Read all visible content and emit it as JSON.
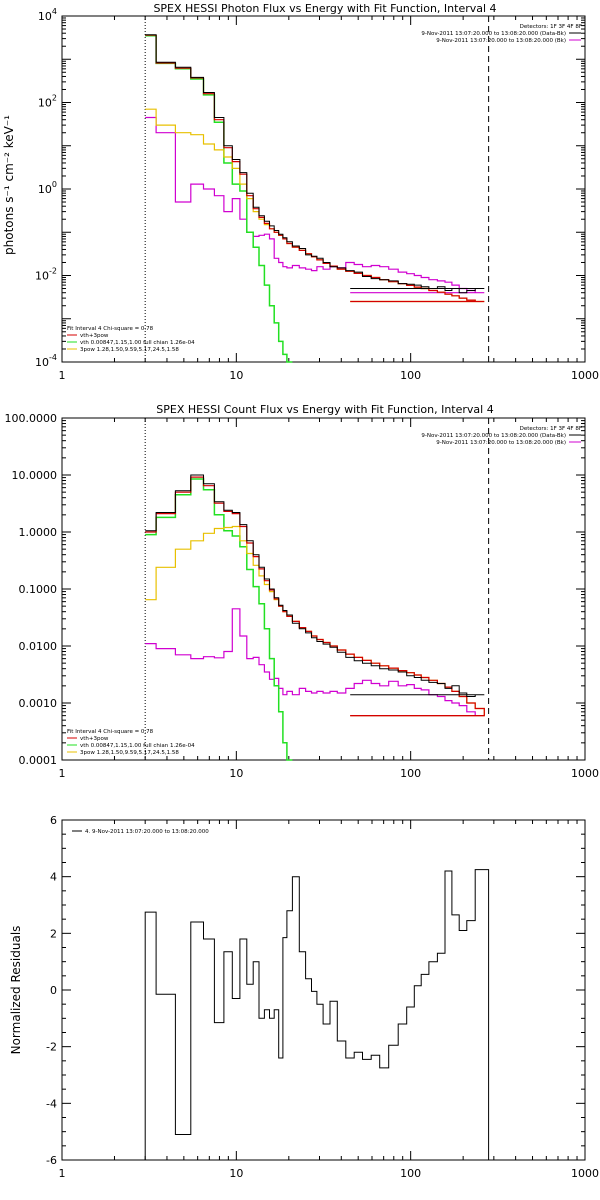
{
  "colors": {
    "data": "#000000",
    "total": "#d40000",
    "vth": "#22e022",
    "pow": "#e8c000",
    "bk": "#d000d0"
  },
  "chart_data": [
    {
      "type": "line",
      "title": "SPEX HESSI Photon Flux vs Energy with Fit Function, Interval 4",
      "ylabel": "photons s⁻¹ cm⁻² keV⁻¹",
      "xscale": "log",
      "yscale": "log",
      "xlim": [
        1,
        1000
      ],
      "ylim": [
        0.0001,
        10000
      ],
      "xticks": [
        1,
        10,
        100,
        1000
      ],
      "xtick_labels": [
        "1",
        "10",
        "100",
        "1000"
      ],
      "yticks": [
        0.0001,
        0.01,
        1,
        100,
        10000
      ],
      "ytick_labels": [
        {
          "b": "10",
          "e": "-4"
        },
        {
          "b": "10",
          "e": "-2"
        },
        {
          "b": "10",
          "e": "0"
        },
        {
          "b": "10",
          "e": "2"
        },
        {
          "b": "10",
          "e": "4"
        }
      ],
      "vlines": [
        {
          "x": 3,
          "style": "dotted"
        },
        {
          "x": 280,
          "style": "dashed"
        }
      ],
      "legend_tr": [
        {
          "text": "Detectors: 1F 3F 4F 8F",
          "color": ""
        },
        {
          "text": "9-Nov-2011 13:07:20.000 to 13:08:20.000 (Data-Bk)",
          "color": "#000000"
        },
        {
          "text": "9-Nov-2011 13:07:20.000 to 13:08:20.000 (Bk)",
          "color": "#d000d0"
        }
      ],
      "legend_bl": [
        {
          "text": "Fit Interval 4   Chi-square = 0.78",
          "color": ""
        },
        {
          "text": "vth+3pow",
          "color": "#d40000"
        },
        {
          "text": "vth 0.00847,1.15,1.00  full chian 1.26e-04",
          "color": "#22e022"
        },
        {
          "text": "3pow 1.28,1.50,9.59,5.17,24.5,1.58",
          "color": "#e8c000"
        }
      ],
      "x": [
        3,
        4,
        5,
        6,
        7,
        8,
        9,
        10,
        11,
        12,
        13,
        14,
        15,
        16,
        17,
        18,
        19,
        20,
        22,
        24,
        26,
        28,
        30,
        33,
        36,
        40,
        45,
        50,
        56,
        63,
        70,
        80,
        90,
        100,
        110,
        120,
        135,
        150,
        165,
        180,
        200,
        220,
        250,
        280
      ],
      "series": [
        {
          "id": "bk",
          "color": "#d000d0",
          "width": 1.2,
          "values": [
            45,
            20,
            0.5,
            1.3,
            1.0,
            0.7,
            0.3,
            0.6,
            0.2,
            0.1,
            0.08,
            0.085,
            0.09,
            0.07,
            0.025,
            0.02,
            0.016,
            0.015,
            0.017,
            0.015,
            0.014,
            0.013,
            0.016,
            0.014,
            0.016,
            0.015,
            0.02,
            0.018,
            0.016,
            0.017,
            0.016,
            0.014,
            0.012,
            0.011,
            0.01,
            0.009,
            0.008,
            0.0075,
            0.007,
            0.006,
            0.005,
            0.0045,
            0.004,
            0.004
          ],
          "stop": 45
        },
        {
          "id": "vth",
          "color": "#22e022",
          "width": 1.5,
          "values": [
            3500,
            800,
            600,
            350,
            150,
            35,
            4,
            1.3,
            0.9,
            0.1,
            0.045,
            0.017,
            0.006,
            0.002,
            0.0008,
            0.0003,
            0.00015,
            5e-05,
            0,
            0,
            0,
            0,
            0,
            0,
            0,
            0,
            0,
            0,
            0,
            0,
            0,
            0,
            0,
            0,
            0,
            0,
            0,
            0,
            0,
            0,
            0,
            0,
            0,
            0
          ],
          "stop": 18
        },
        {
          "id": "pow",
          "color": "#e8c000",
          "width": 1.2,
          "values": [
            70,
            30,
            20,
            18,
            11,
            8,
            5.5,
            3.0,
            1.3,
            0.6,
            0.3,
            0.2,
            0.15,
            0.12,
            0.1,
            0.085,
            0.07,
            0.055,
            0.045,
            0.038,
            0.032,
            0.027,
            0.023,
            0.019,
            0.0165,
            0.014,
            0.0125,
            0.0112,
            0.01,
            0.009,
            0.008,
            0.0072,
            0.0065,
            0.0059,
            0.0054,
            0.005,
            0.0045,
            0.0041,
            0.0037,
            0.0034,
            0.003,
            0.0027,
            0.0025,
            0.0025
          ],
          "stop": 45
        },
        {
          "id": "total",
          "color": "#d40000",
          "width": 1.2,
          "values": [
            3600,
            820,
            620,
            370,
            160,
            40,
            9,
            4.3,
            2.2,
            0.7,
            0.35,
            0.22,
            0.16,
            0.12,
            0.1,
            0.085,
            0.07,
            0.055,
            0.045,
            0.038,
            0.032,
            0.027,
            0.023,
            0.019,
            0.0165,
            0.014,
            0.0125,
            0.0112,
            0.01,
            0.009,
            0.008,
            0.0072,
            0.0065,
            0.0059,
            0.0054,
            0.005,
            0.0045,
            0.0041,
            0.0037,
            0.0034,
            0.003,
            0.0027,
            0.0025,
            0.0025
          ],
          "stop": 45
        },
        {
          "id": "data",
          "color": "#000000",
          "width": 1.0,
          "values": [
            3700,
            850,
            650,
            380,
            170,
            45,
            10,
            4.8,
            2.4,
            0.8,
            0.38,
            0.24,
            0.18,
            0.14,
            0.11,
            0.09,
            0.075,
            0.06,
            0.048,
            0.042,
            0.03,
            0.028,
            0.025,
            0.02,
            0.016,
            0.015,
            0.013,
            0.012,
            0.0095,
            0.0085,
            0.008,
            0.0075,
            0.0065,
            0.0063,
            0.006,
            0.0055,
            0.005,
            0.0055,
            0.0045,
            0.005,
            0.004,
            0.0045,
            0.005,
            0.005
          ],
          "stop": 45
        }
      ]
    },
    {
      "type": "line",
      "title": "SPEX HESSI Count Flux vs Energy with Fit Function, Interval 4",
      "ylabel": "",
      "xscale": "log",
      "yscale": "log",
      "xlim": [
        1,
        1000
      ],
      "ylim": [
        0.0001,
        100
      ],
      "xticks": [
        1,
        10,
        100,
        1000
      ],
      "xtick_labels": [
        "1",
        "10",
        "100",
        "1000"
      ],
      "yticks": [
        0.0001,
        0.001,
        0.01,
        0.1,
        1,
        10,
        100
      ],
      "ytick_labels": [
        {
          "b": "0.0001",
          "e": ""
        },
        {
          "b": "0.0010",
          "e": ""
        },
        {
          "b": "0.0100",
          "e": ""
        },
        {
          "b": "0.1000",
          "e": ""
        },
        {
          "b": "1.0000",
          "e": ""
        },
        {
          "b": "10.0000",
          "e": ""
        },
        {
          "b": "100.0000",
          "e": ""
        }
      ],
      "vlines": [
        {
          "x": 3,
          "style": "dotted"
        },
        {
          "x": 280,
          "style": "dashed"
        }
      ],
      "legend_tr": [
        {
          "text": "Detectors: 1F 3F 4F 8F",
          "color": ""
        },
        {
          "text": "9-Nov-2011 13:07:20.000 to 13:08:20.000 (Data-Bk)",
          "color": "#000000"
        },
        {
          "text": "9-Nov-2011 13:07:20.000 to 13:08:20.000 (Bk)",
          "color": "#d000d0"
        }
      ],
      "legend_bl": [
        {
          "text": "Fit Interval 4   Chi-square = 0.78",
          "color": ""
        },
        {
          "text": "vth+3pow",
          "color": "#d40000"
        },
        {
          "text": "vth 0.00847,1.15,1.00  full chian 1.26e-04",
          "color": "#22e022"
        },
        {
          "text": "3pow 1.28,1.50,9.59,5.17,24.5,1.58",
          "color": "#e8c000"
        }
      ],
      "x": [
        3,
        4,
        5,
        6,
        7,
        8,
        9,
        10,
        11,
        12,
        13,
        14,
        15,
        16,
        17,
        18,
        19,
        20,
        22,
        24,
        26,
        28,
        30,
        33,
        36,
        40,
        45,
        50,
        56,
        63,
        70,
        80,
        90,
        100,
        110,
        120,
        135,
        150,
        165,
        180,
        200,
        220,
        250,
        280
      ],
      "series": [
        {
          "id": "bk",
          "color": "#d000d0",
          "width": 1.2,
          "values": [
            0.011,
            0.009,
            0.007,
            0.006,
            0.0065,
            0.0062,
            0.008,
            0.045,
            0.015,
            0.006,
            0.0063,
            0.0047,
            0.0035,
            0.0026,
            0.0027,
            0.0018,
            0.0014,
            0.0016,
            0.0014,
            0.0018,
            0.0016,
            0.0015,
            0.0016,
            0.0015,
            0.0016,
            0.0015,
            0.0018,
            0.0022,
            0.0025,
            0.0022,
            0.002,
            0.0024,
            0.002,
            0.0021,
            0.0018,
            0.0017,
            0.0014,
            0.0013,
            0.0011,
            0.001,
            0.0009,
            0.0007,
            0.0006,
            0.0006
          ],
          "stop": 45
        },
        {
          "id": "vth",
          "color": "#22e022",
          "width": 1.5,
          "values": [
            0.9,
            1.8,
            4.5,
            8.5,
            5.5,
            2.0,
            1.05,
            0.85,
            0.55,
            0.22,
            0.11,
            0.055,
            0.02,
            0.006,
            0.002,
            0.0007,
            0.0002,
            0.0001,
            0,
            0,
            0,
            0,
            0,
            0,
            0,
            0,
            0,
            0,
            0,
            0,
            0,
            0,
            0,
            0,
            0,
            0,
            0,
            0,
            0,
            0,
            0,
            0,
            0,
            0
          ],
          "stop": 19
        },
        {
          "id": "pow",
          "color": "#e8c000",
          "width": 1.2,
          "values": [
            0.065,
            0.24,
            0.5,
            0.7,
            0.95,
            1.15,
            1.2,
            1.25,
            0.7,
            0.42,
            0.26,
            0.17,
            0.12,
            0.09,
            0.065,
            0.05,
            0.04,
            0.033,
            0.027,
            0.021,
            0.018,
            0.015,
            0.013,
            0.0115,
            0.01,
            0.0085,
            0.0072,
            0.0063,
            0.0056,
            0.005,
            0.0045,
            0.0041,
            0.0037,
            0.0034,
            0.0031,
            0.0028,
            0.0025,
            0.0022,
            0.0019,
            0.0016,
            0.0013,
            0.001,
            0.0008,
            0.0006
          ],
          "stop": 45
        },
        {
          "id": "total",
          "color": "#d40000",
          "width": 1.2,
          "values": [
            1.0,
            2.1,
            5.0,
            9.2,
            6.5,
            3.2,
            2.3,
            2.1,
            1.25,
            0.64,
            0.37,
            0.225,
            0.14,
            0.096,
            0.067,
            0.05,
            0.04,
            0.033,
            0.027,
            0.021,
            0.018,
            0.015,
            0.013,
            0.0115,
            0.01,
            0.0085,
            0.0072,
            0.0063,
            0.0056,
            0.005,
            0.0045,
            0.0041,
            0.0037,
            0.0034,
            0.0031,
            0.0028,
            0.0025,
            0.0022,
            0.0019,
            0.0016,
            0.0013,
            0.001,
            0.0008,
            0.0006
          ],
          "stop": 45
        },
        {
          "id": "data",
          "color": "#000000",
          "width": 1.0,
          "values": [
            1.05,
            2.2,
            5.3,
            10.0,
            7.0,
            3.4,
            2.4,
            2.2,
            1.35,
            0.7,
            0.4,
            0.24,
            0.15,
            0.1,
            0.07,
            0.052,
            0.042,
            0.035,
            0.025,
            0.02,
            0.017,
            0.014,
            0.012,
            0.0108,
            0.0095,
            0.0078,
            0.0063,
            0.0055,
            0.005,
            0.0045,
            0.004,
            0.0038,
            0.0035,
            0.003,
            0.0028,
            0.0025,
            0.0023,
            0.0022,
            0.0018,
            0.002,
            0.0015,
            0.0013,
            0.0014,
            0.0014
          ],
          "stop": 45
        }
      ]
    },
    {
      "type": "line",
      "title": "",
      "ylabel": "Normalized Residuals",
      "xscale": "log",
      "yscale": "linear",
      "xlim": [
        1,
        1000
      ],
      "ylim": [
        -6,
        6
      ],
      "xticks": [
        1,
        10,
        100,
        1000
      ],
      "xtick_labels": [
        "1",
        "10",
        "100",
        "1000"
      ],
      "yticks": [
        -6,
        -4,
        -2,
        0,
        2,
        4,
        6
      ],
      "ytick_labels": [
        {
          "b": "-6",
          "e": ""
        },
        {
          "b": "-4",
          "e": ""
        },
        {
          "b": "-2",
          "e": ""
        },
        {
          "b": "0",
          "e": ""
        },
        {
          "b": "2",
          "e": ""
        },
        {
          "b": "4",
          "e": ""
        },
        {
          "b": "6",
          "e": ""
        }
      ],
      "vlines": [],
      "legend_tr": [],
      "legend_bl": [],
      "legend_tl": [
        {
          "text": "4. 9-Nov-2011 13:07:20.000 to 13:08:20.000",
          "color": "#000000"
        }
      ],
      "x": [
        3,
        4,
        5,
        6,
        7,
        8,
        9,
        10,
        11,
        12,
        13,
        14,
        15,
        16,
        17,
        18,
        19,
        20,
        22,
        24,
        26,
        28,
        30,
        33,
        36,
        40,
        45,
        50,
        56,
        63,
        70,
        80,
        90,
        100,
        110,
        120,
        135,
        150,
        165,
        180,
        200,
        220,
        250,
        280
      ],
      "series": [
        {
          "id": "resid",
          "color": "#000000",
          "width": 1.0,
          "values": [
            2.75,
            -0.15,
            -5.1,
            2.4,
            1.8,
            -1.15,
            1.35,
            -0.3,
            1.8,
            0.2,
            1.0,
            -1.0,
            -0.7,
            -1.0,
            -0.7,
            -2.4,
            1.85,
            2.8,
            4.0,
            1.35,
            0.4,
            -0.05,
            -0.5,
            -1.2,
            -0.4,
            -1.8,
            -2.4,
            -2.2,
            -2.45,
            -2.3,
            -2.75,
            -1.95,
            -1.2,
            -0.6,
            0.15,
            0.55,
            1.0,
            1.3,
            4.2,
            2.65,
            2.1,
            2.45,
            4.25,
            4.25
          ],
          "stop": 280,
          "drop_edges": true
        }
      ]
    }
  ]
}
